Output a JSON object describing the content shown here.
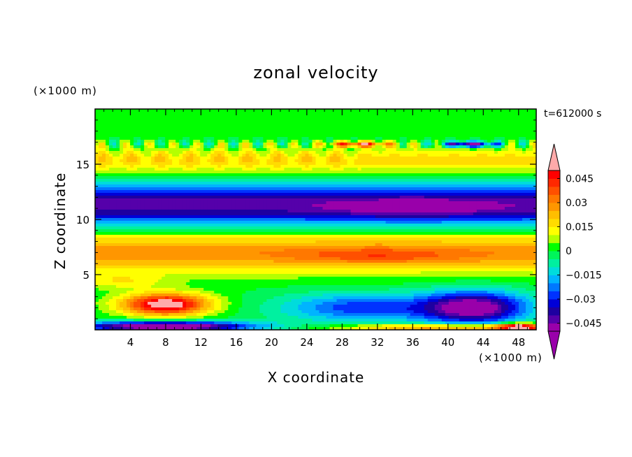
{
  "chart_data": {
    "type": "heatmap",
    "title": "zonal velocity",
    "xlabel": "X coordinate",
    "ylabel": "Z coordinate",
    "x_unit": "(×1000 m)",
    "y_unit": "(×1000 m)",
    "time_label": "t=612000 s",
    "xlim": [
      0,
      50
    ],
    "ylim": [
      0,
      20
    ],
    "x_ticks": [
      4,
      8,
      12,
      16,
      20,
      24,
      28,
      32,
      36,
      40,
      44,
      48
    ],
    "x_tick_labels": [
      "4",
      "8",
      "12",
      "16",
      "20",
      "24",
      "28",
      "32",
      "36",
      "40",
      "44",
      "48"
    ],
    "y_ticks": [
      5,
      10,
      15
    ],
    "y_tick_labels": [
      "5",
      "10",
      "15"
    ],
    "colorbar": {
      "min": -0.05,
      "max": 0.05,
      "step": 0.005,
      "ticks": [
        0.045,
        0.03,
        0.015,
        0,
        -0.015,
        -0.03,
        -0.045
      ],
      "tick_labels": [
        "0.045",
        "0.03",
        "0.015",
        "0",
        "−0.015",
        "−0.03",
        "−0.045"
      ],
      "colors": [
        "#9900aa",
        "#5500aa",
        "#1e00a0",
        "#0000d8",
        "#0032ff",
        "#0078ff",
        "#00b4ff",
        "#00dcdc",
        "#00f0a0",
        "#00f55a",
        "#00ff00",
        "#b4ff00",
        "#ffff00",
        "#ffdc00",
        "#ffbe00",
        "#ff9600",
        "#ff7800",
        "#ff5000",
        "#ff2800",
        "#ff0000"
      ],
      "over_color": "#ffaaaa",
      "under_color": "#9900aa"
    },
    "field_description": "zonal velocity u(x,z) in m/s, banded structure: near 0 above z=17, positive 0.01-0.045 at z 14-17, strong negative -0.03 to -0.05 at z 9.5-13, positive 0.025-0.04 at z 5.5-8.5, surface jet +0.05 near x=4-10 z=1.5-3, negative -0.05 at z 0.5-3 for x>20, thin negative surface layer for x<18"
  }
}
